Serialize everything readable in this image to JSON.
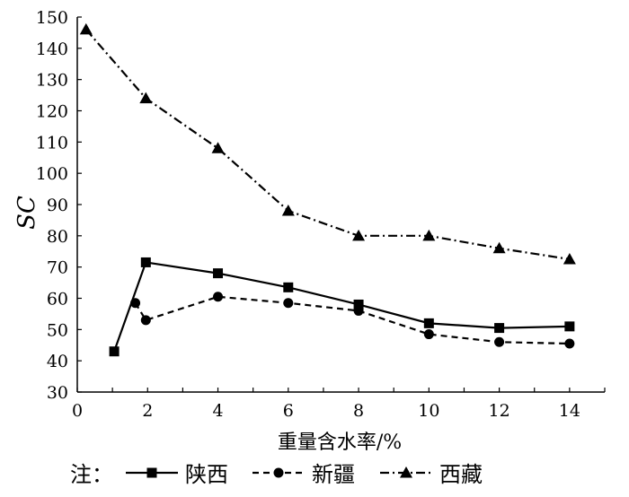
{
  "chart_data": {
    "type": "line",
    "title": "",
    "xlabel": "重量含水率/%",
    "ylabel": "SC",
    "xlim": [
      0,
      15
    ],
    "ylim": [
      30,
      150
    ],
    "xticks": [
      0,
      2,
      4,
      6,
      8,
      10,
      12,
      14
    ],
    "yticks": [
      30,
      40,
      50,
      60,
      70,
      80,
      90,
      100,
      110,
      120,
      130,
      140,
      150
    ],
    "grid": false,
    "legend_position": "bottom",
    "legend_prefix": "注：",
    "series": [
      {
        "name": "陕西",
        "marker": "square",
        "line_style": "solid",
        "color": "#000000",
        "x": [
          1.05,
          1.95,
          4,
          6,
          8,
          10,
          12,
          14
        ],
        "y": [
          43,
          71.5,
          68,
          63.5,
          58,
          52,
          50.5,
          51
        ]
      },
      {
        "name": "新疆",
        "marker": "circle",
        "line_style": "dashed",
        "color": "#000000",
        "x": [
          1.65,
          1.95,
          4,
          6,
          8,
          10,
          12,
          14
        ],
        "y": [
          58.5,
          53,
          60.5,
          58.5,
          56,
          48.5,
          46,
          45.5
        ]
      },
      {
        "name": "西藏",
        "marker": "triangle",
        "line_style": "dash-dot",
        "color": "#000000",
        "x": [
          0.25,
          1.95,
          4,
          6,
          8,
          10,
          12,
          14
        ],
        "y": [
          146,
          124,
          108,
          88,
          80,
          80,
          76,
          72.5
        ]
      }
    ]
  }
}
